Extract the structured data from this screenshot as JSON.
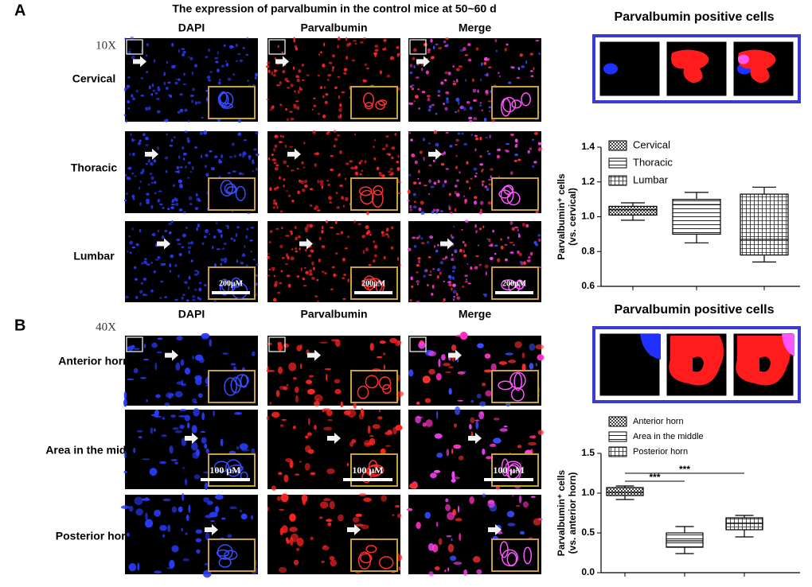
{
  "figure": {
    "panel_a": {
      "label": "A",
      "title": "The expression of parvalbumin in the control mice at 50~60 d",
      "magnification": "10X",
      "columns": [
        "DAPI",
        "Parvalbumin",
        "Merge"
      ],
      "rows": [
        "Cervical",
        "Thoracic",
        "Lumbar"
      ],
      "scale_bar": "200μM",
      "zoom_title": "Parvalbumin positive cells"
    },
    "panel_b": {
      "label": "B",
      "magnification": "40X",
      "columns": [
        "DAPI",
        "Parvalbumin",
        "Merge"
      ],
      "rows": [
        "Anterior horn",
        "Area in the middle",
        "Posterior horn"
      ],
      "scale_bar": "100 μM",
      "zoom_title": "Parvalbumin positive cells"
    }
  },
  "chart_data": [
    {
      "type": "box",
      "y_label": [
        "Parvalbumin⁺ cells",
        "(vs. cervical)"
      ],
      "categories": [
        "Cervical",
        "Thoracic",
        "Lumbar"
      ],
      "patterns": [
        "checker",
        "hlines",
        "grid"
      ],
      "min": [
        0.98,
        0.85,
        0.74
      ],
      "q1": [
        1.01,
        0.9,
        0.78
      ],
      "median": [
        1.04,
        1.07,
        0.87
      ],
      "q3": [
        1.06,
        1.1,
        1.13
      ],
      "max": [
        1.08,
        1.14,
        1.17
      ],
      "ylim": [
        0.6,
        1.4
      ],
      "yticks": [
        0.6,
        0.8,
        {
          "value": 1.0,
          "label": "1.0"
        },
        1.2,
        1.4
      ]
    },
    {
      "type": "box",
      "y_label": [
        "Parvalbumin⁺ cells",
        "(vs. anterior horn)"
      ],
      "categories": [
        "Anterior horn",
        "Area in the middle",
        "Posterior horn"
      ],
      "patterns": [
        "checker",
        "hlines",
        "grid"
      ],
      "min": [
        0.92,
        0.24,
        0.45
      ],
      "q1": [
        0.97,
        0.32,
        0.54
      ],
      "median": [
        1.01,
        0.4,
        0.62
      ],
      "q3": [
        1.07,
        0.5,
        0.69
      ],
      "max": [
        1.09,
        0.58,
        0.72
      ],
      "ylim": [
        0.0,
        1.5
      ],
      "yticks": [
        {
          "value": 0,
          "label": "0.0"
        },
        0.5,
        {
          "value": 1,
          "label": "1.0"
        },
        1.5
      ],
      "significance": [
        "***",
        "***"
      ]
    }
  ]
}
